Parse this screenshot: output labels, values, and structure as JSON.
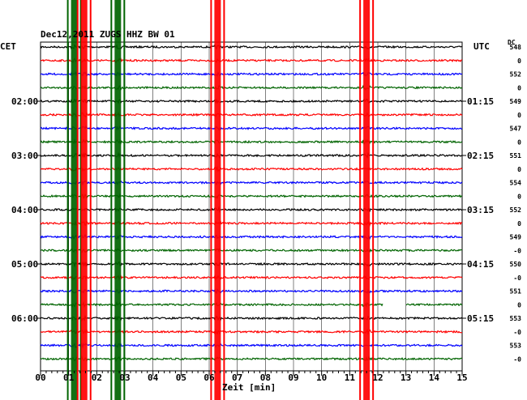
{
  "chart_data": {
    "type": "line",
    "title": "Dec12,2011   ZUGS HHZ BW 01",
    "left_label": "CET",
    "right_label": "UTC",
    "dc_label": "DC",
    "xlabel": "Zeit [min]",
    "xlim": [
      0,
      15
    ],
    "x_ticks": [
      "00",
      "01",
      "02",
      "03",
      "04",
      "05",
      "06",
      "07",
      "08",
      "09",
      "10",
      "11",
      "12",
      "13",
      "14",
      "15"
    ],
    "trace_count": 24,
    "trace_colors": [
      "#000000",
      "#ff0000",
      "#0000ff",
      "#006400"
    ],
    "left_hours": [
      {
        "row": 4,
        "label": "02:00"
      },
      {
        "row": 8,
        "label": "03:00"
      },
      {
        "row": 12,
        "label": "04:00"
      },
      {
        "row": 16,
        "label": "05:00"
      },
      {
        "row": 20,
        "label": "06:00"
      }
    ],
    "right_hours": [
      {
        "row": 4,
        "label": "01:15"
      },
      {
        "row": 8,
        "label": "02:15"
      },
      {
        "row": 12,
        "label": "03:15"
      },
      {
        "row": 16,
        "label": "04:15"
      },
      {
        "row": 20,
        "label": "05:15"
      }
    ],
    "dc_values": [
      "548",
      "0",
      "552",
      "0",
      "549",
      "0",
      "547",
      "0",
      "551",
      "0",
      "554",
      "0",
      "552",
      "0",
      "549",
      "-0",
      "550",
      "-0",
      "551",
      "0",
      "553",
      "-0",
      "553",
      "-0"
    ],
    "events": [
      {
        "minute": 1.2,
        "color": "#006400"
      },
      {
        "minute": 1.55,
        "color": "#ff0000"
      },
      {
        "minute": 2.75,
        "color": "#006400"
      },
      {
        "minute": 6.3,
        "color": "#ff0000"
      },
      {
        "minute": 11.6,
        "color": "#ff0000"
      }
    ],
    "gap": {
      "row": 19,
      "from_minute": 12.2,
      "to_minute": 13.0
    }
  }
}
